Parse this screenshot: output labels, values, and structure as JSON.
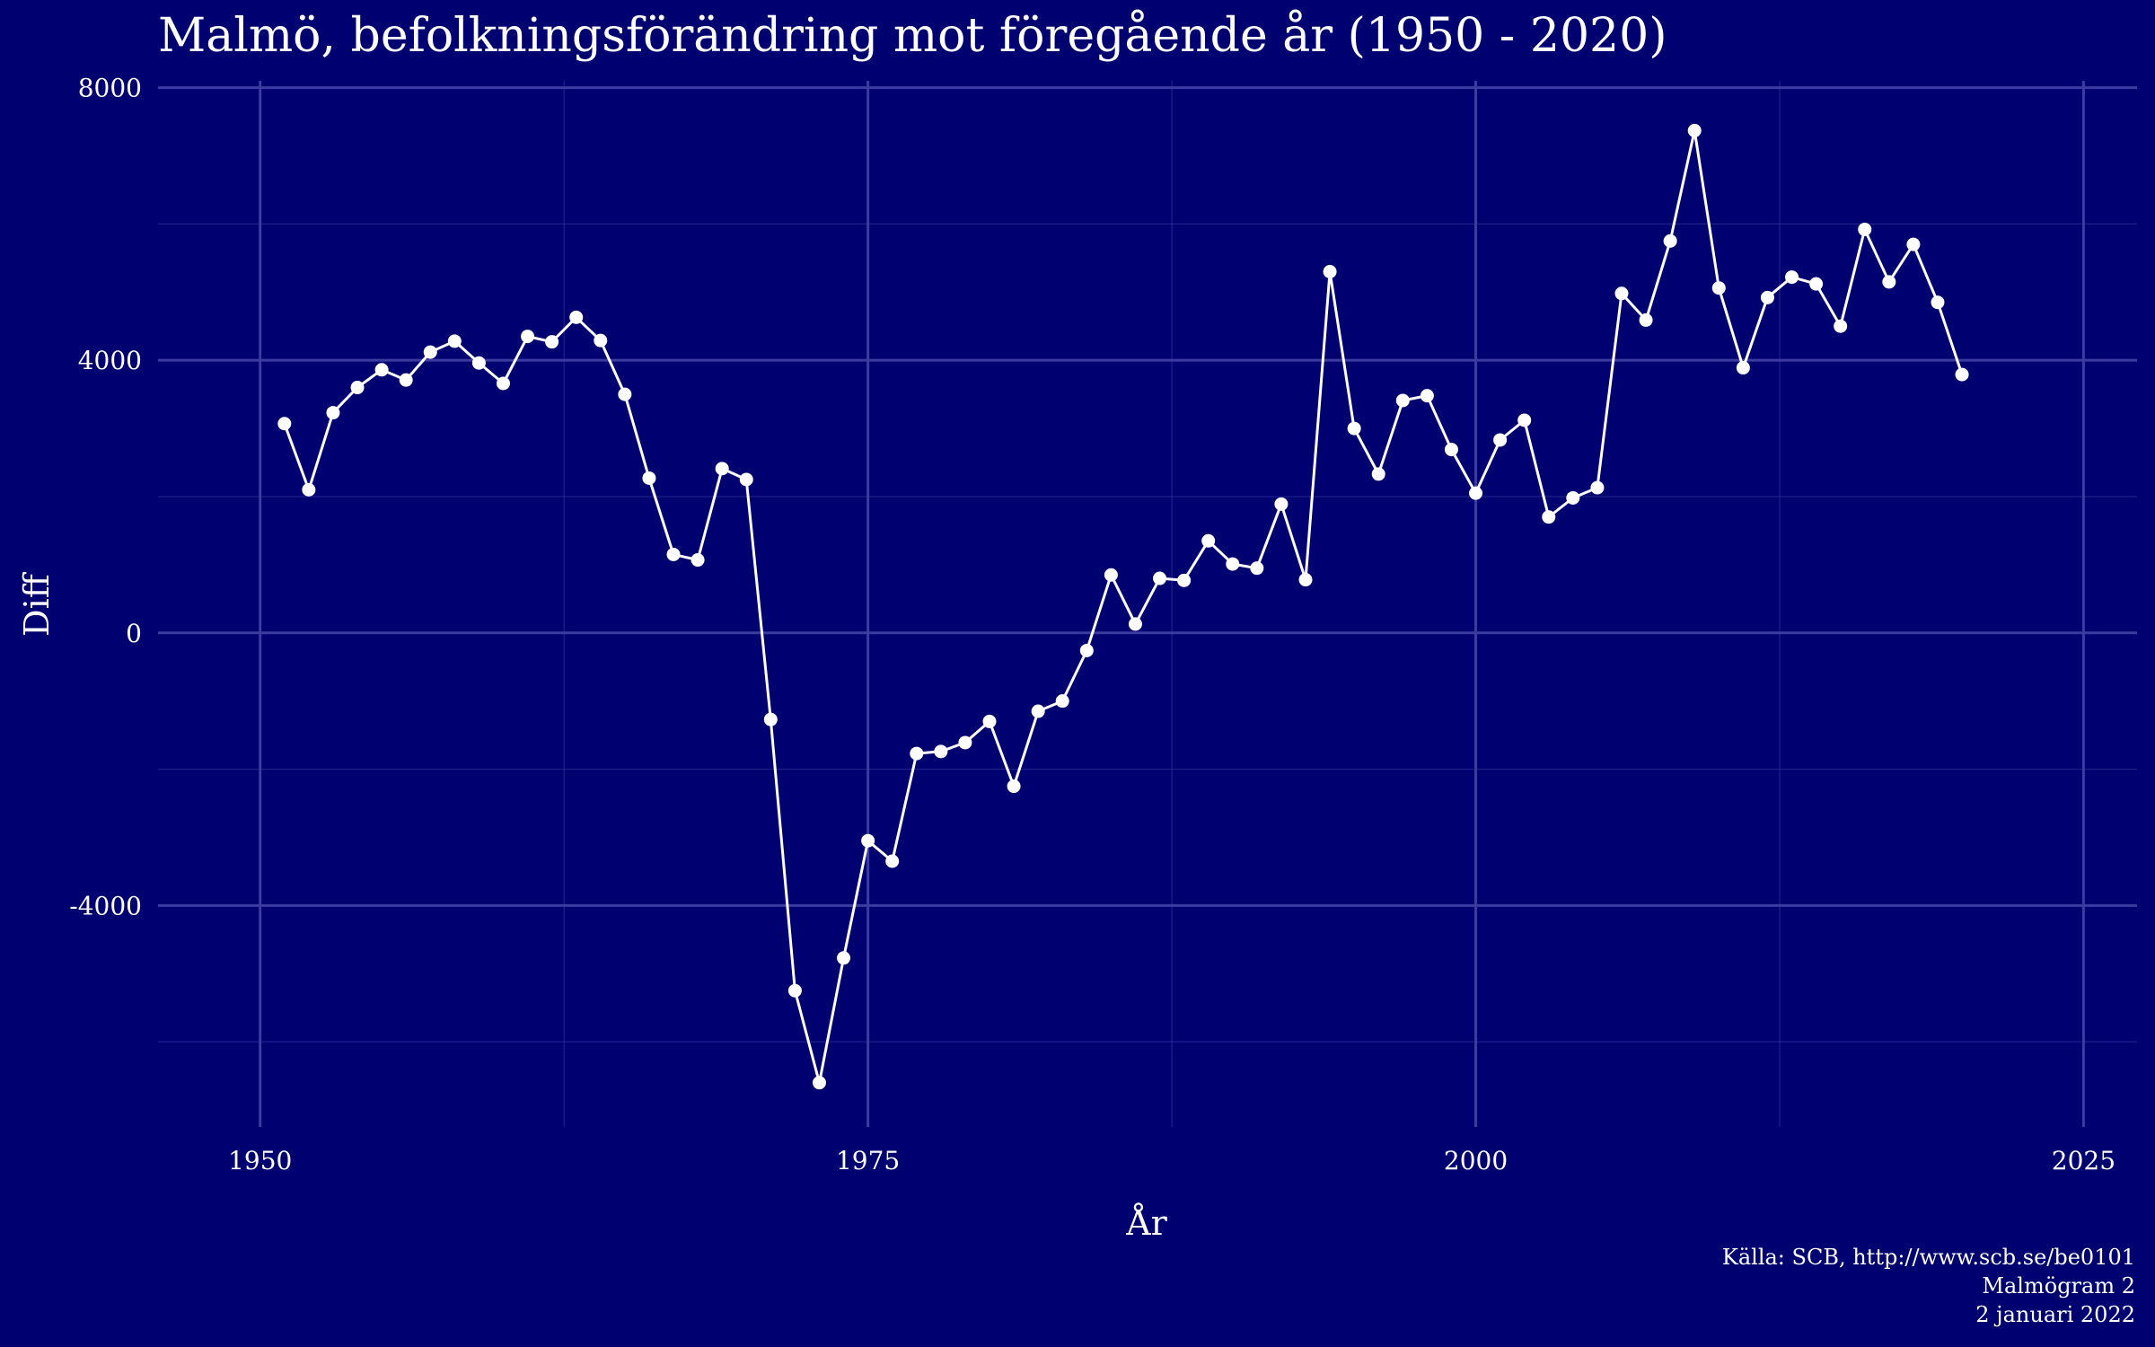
{
  "chart_data": {
    "type": "line",
    "title": "Malmö, befolkningsförändring mot föregående år (1950 - 2020)",
    "xlabel": "År",
    "ylabel": "Diff",
    "xlim": [
      1945.8,
      2027.2
    ],
    "ylim": [
      -7250,
      8100
    ],
    "x_ticks": [
      1950,
      1975,
      2000,
      2025
    ],
    "y_ticks": [
      -4000,
      0,
      4000,
      8000
    ],
    "grid": true,
    "markers": true,
    "series": [
      {
        "x": [
          1951,
          1952,
          1953,
          1954,
          1955,
          1956,
          1957,
          1958,
          1959,
          1960,
          1961,
          1962,
          1963,
          1964,
          1965,
          1966,
          1967,
          1968,
          1969,
          1970,
          1971,
          1972,
          1973,
          1974,
          1975,
          1976,
          1977,
          1978,
          1979,
          1980,
          1981,
          1982,
          1983,
          1984,
          1985,
          1986,
          1987,
          1988,
          1989,
          1990,
          1991,
          1992,
          1993,
          1994,
          1995,
          1996,
          1997,
          1998,
          1999,
          2000,
          2001,
          2002,
          2003,
          2004,
          2005,
          2006,
          2007,
          2008,
          2009,
          2010,
          2011,
          2012,
          2013,
          2014,
          2015,
          2016,
          2017,
          2018,
          2019,
          2020
        ],
        "y": [
          3070,
          2100,
          3230,
          3600,
          3860,
          3710,
          4120,
          4280,
          3960,
          3660,
          4350,
          4270,
          4630,
          4290,
          3500,
          2270,
          1150,
          1070,
          2410,
          2250,
          -1270,
          -5250,
          -6600,
          -4770,
          -3050,
          -3350,
          -1770,
          -1740,
          -1610,
          -1300,
          -2250,
          -1150,
          -1000,
          -260,
          850,
          130,
          800,
          770,
          1350,
          1010,
          950,
          1890,
          780,
          5300,
          3000,
          2330,
          3410,
          3480,
          2690,
          2050,
          2830,
          3120,
          1700,
          1980,
          2130,
          4980,
          4590,
          5750,
          7370,
          5060,
          3890,
          4920,
          5220,
          5120,
          4500,
          5920,
          5150,
          5700,
          4850,
          3790
        ]
      }
    ],
    "caption": [
      "Källa: SCB, http://www.scb.se/be0101",
      "Malmögram 2",
      "2 januari 2022"
    ],
    "colors": {
      "background": "#000070",
      "grid": "#3c3ca0",
      "line": "#ffffff",
      "text": "#ffffff"
    }
  }
}
